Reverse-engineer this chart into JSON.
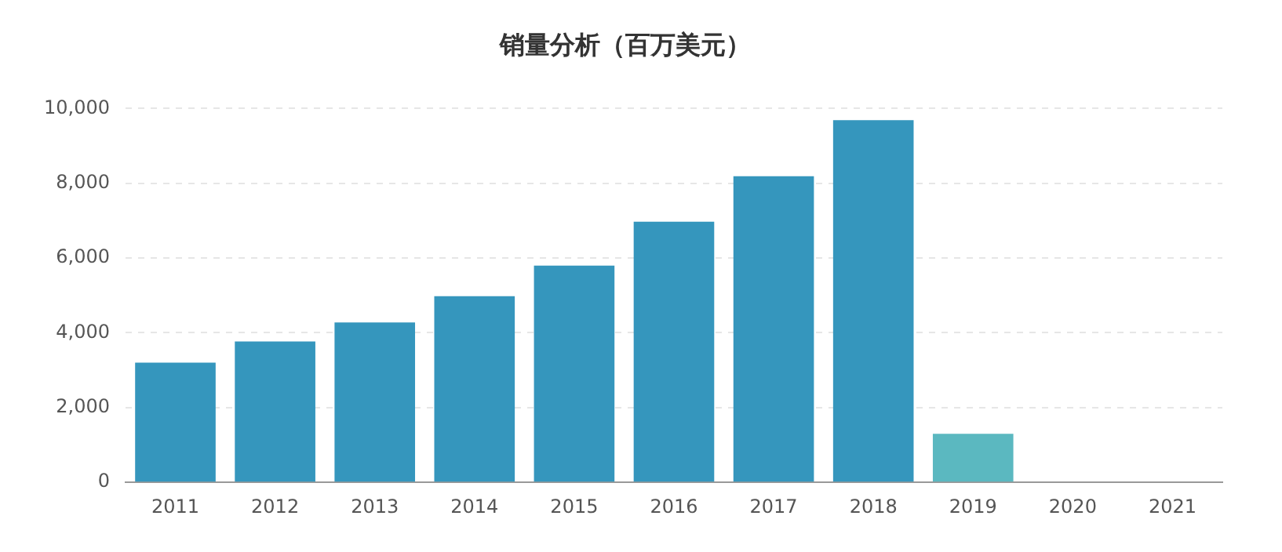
{
  "chart_data": {
    "type": "bar",
    "title": "销量分析（百万美元）",
    "categories": [
      "2011",
      "2012",
      "2013",
      "2014",
      "2015",
      "2016",
      "2017",
      "2018",
      "2019",
      "2020",
      "2021"
    ],
    "series": [
      {
        "color": "#3596bd",
        "values": [
          3200,
          3770,
          4280,
          4980,
          5800,
          6970,
          8190,
          9690,
          null,
          null,
          null
        ]
      },
      {
        "color": "#5bb8c0",
        "values": [
          null,
          null,
          null,
          null,
          null,
          null,
          null,
          null,
          1300,
          null,
          null
        ]
      }
    ],
    "ylim": [
      0,
      10000
    ],
    "yticks": [
      0,
      {
        "value": 2000,
        "label": "2,000"
      },
      {
        "value": 4000,
        "label": "4,000"
      },
      {
        "value": 6000,
        "label": "6,000"
      },
      {
        "value": 8000,
        "label": "8,000"
      },
      {
        "value": 10000,
        "label": "10,000"
      }
    ],
    "grid": "y"
  }
}
